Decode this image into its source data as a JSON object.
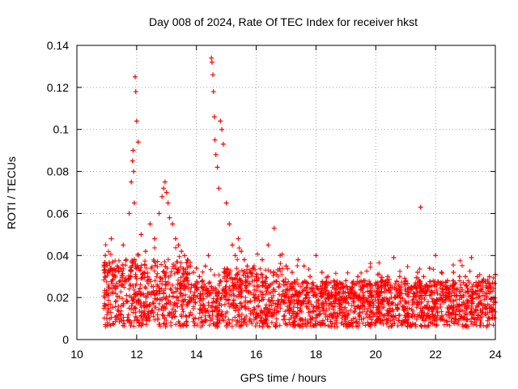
{
  "chart_data": {
    "type": "scatter",
    "title": "Day 008 of 2024, Rate Of TEC Index for receiver hkst",
    "xlabel": "GPS time / hours",
    "ylabel": "ROTI / TECUs",
    "xlim": [
      10,
      24
    ],
    "ylim": [
      0,
      0.14
    ],
    "x_ticks": [
      10,
      12,
      14,
      16,
      18,
      20,
      22,
      24
    ],
    "x_tick_labels": [
      "10",
      "12",
      "14",
      "16",
      "18",
      "20",
      "22",
      "24"
    ],
    "y_ticks": [
      0,
      0.02,
      0.04,
      0.06,
      0.08,
      0.1,
      0.12,
      0.14
    ],
    "y_tick_labels": [
      "0",
      "0.02",
      "0.04",
      "0.06",
      "0.08",
      "0.1",
      "0.12",
      "0.14"
    ],
    "grid": true,
    "marker": "+",
    "marker_color": "#ff0000",
    "series": [
      {
        "name": "ROTI",
        "color": "#ff0000",
        "x": [
          10.95,
          11.05,
          11.15,
          11.25,
          11.35,
          11.45,
          11.55,
          11.65,
          11.75,
          11.82,
          11.86,
          11.88,
          11.9,
          11.92,
          11.95,
          11.97,
          12.0,
          12.05,
          12.15,
          12.3,
          12.45,
          12.6,
          12.75,
          12.85,
          12.9,
          12.95,
          13.0,
          13.05,
          13.1,
          13.2,
          13.3,
          13.4,
          13.5,
          13.6,
          13.7,
          13.8,
          13.9,
          14.0,
          14.1,
          14.2,
          14.3,
          14.4,
          14.5,
          14.52,
          14.55,
          14.57,
          14.6,
          14.62,
          14.65,
          14.7,
          14.75,
          14.8,
          14.85,
          14.9,
          15.0,
          15.1,
          15.2,
          15.3,
          15.4,
          15.5,
          15.6,
          15.7,
          15.8,
          15.9,
          16.0,
          16.2,
          16.4,
          16.6,
          16.8,
          17.0,
          17.2,
          17.4,
          17.6,
          17.8,
          18.0,
          18.2,
          18.4,
          18.6,
          18.8,
          19.0,
          19.2,
          19.4,
          19.6,
          19.8,
          20.0,
          20.2,
          20.4,
          20.6,
          20.8,
          21.0,
          21.2,
          21.4,
          21.5,
          21.6,
          21.8,
          22.0,
          22.2,
          22.4,
          22.6,
          22.8,
          23.0,
          23.2,
          23.4,
          23.6,
          23.8,
          24.0
        ],
        "y": [
          0.04,
          0.025,
          0.048,
          0.03,
          0.035,
          0.028,
          0.045,
          0.038,
          0.06,
          0.075,
          0.085,
          0.09,
          0.08,
          0.065,
          0.125,
          0.118,
          0.104,
          0.094,
          0.05,
          0.042,
          0.055,
          0.048,
          0.06,
          0.068,
          0.072,
          0.075,
          0.07,
          0.065,
          0.058,
          0.055,
          0.048,
          0.045,
          0.042,
          0.04,
          0.038,
          0.035,
          0.032,
          0.034,
          0.03,
          0.028,
          0.035,
          0.04,
          0.134,
          0.132,
          0.126,
          0.118,
          0.106,
          0.095,
          0.088,
          0.082,
          0.072,
          0.104,
          0.1,
          0.093,
          0.065,
          0.055,
          0.045,
          0.04,
          0.048,
          0.042,
          0.038,
          0.035,
          0.032,
          0.034,
          0.03,
          0.038,
          0.045,
          0.053,
          0.04,
          0.035,
          0.032,
          0.038,
          0.035,
          0.03,
          0.04,
          0.032,
          0.03,
          0.028,
          0.027,
          0.028,
          0.025,
          0.03,
          0.028,
          0.026,
          0.027,
          0.028,
          0.03,
          0.039,
          0.03,
          0.028,
          0.025,
          0.032,
          0.063,
          0.03,
          0.034,
          0.04,
          0.032,
          0.028,
          0.032,
          0.03,
          0.03,
          0.039,
          0.03,
          0.028,
          0.03,
          0.031
        ]
      }
    ]
  }
}
